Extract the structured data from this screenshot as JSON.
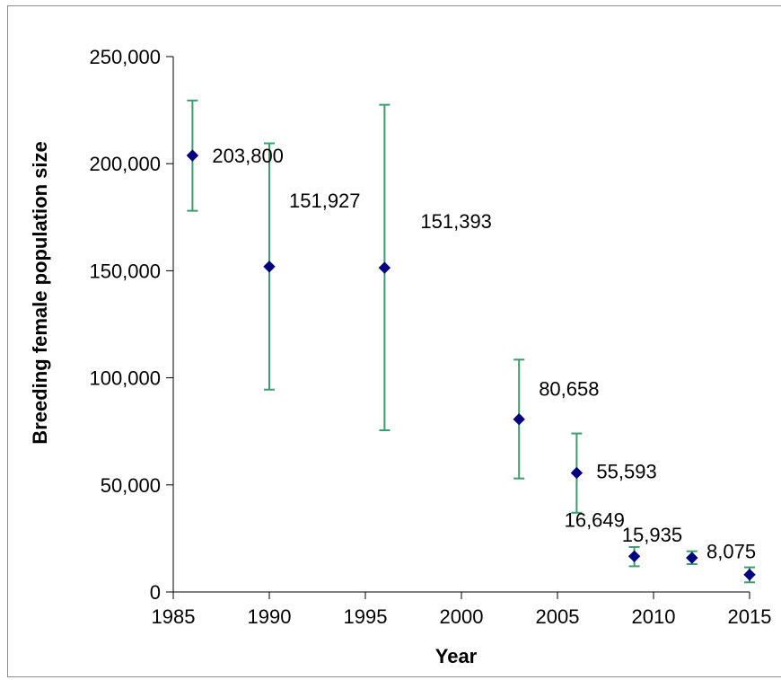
{
  "chart_data": {
    "type": "scatter",
    "title": "",
    "xlabel": "Year",
    "ylabel": "Breeding female population size",
    "xlim": [
      1985,
      2015
    ],
    "ylim": [
      0,
      250000
    ],
    "x_ticks": [
      1985,
      1990,
      1995,
      2000,
      2005,
      2010,
      2015
    ],
    "y_ticks": [
      0,
      50000,
      100000,
      150000,
      200000,
      250000
    ],
    "x_tick_labels": [
      "1985",
      "1990",
      "1995",
      "2000",
      "2005",
      "2010",
      "2015"
    ],
    "y_tick_labels": [
      "0",
      "50,000",
      "100,000",
      "150,000",
      "200,000",
      "250,000"
    ],
    "grid": false,
    "marker_color": "#000080",
    "error_bar_color": "#3a9e6e",
    "points": [
      {
        "x": 1986,
        "y": 203800,
        "low": 178000,
        "high": 229500,
        "label": "203,800"
      },
      {
        "x": 1990,
        "y": 151927,
        "low": 94500,
        "high": 209500,
        "label": "151,927"
      },
      {
        "x": 1996,
        "y": 151393,
        "low": 75500,
        "high": 227500,
        "label": "151,393"
      },
      {
        "x": 2003,
        "y": 80658,
        "low": 53000,
        "high": 108500,
        "label": "80,658"
      },
      {
        "x": 2006,
        "y": 55593,
        "low": 37000,
        "high": 74000,
        "label": "55,593"
      },
      {
        "x": 2009,
        "y": 16649,
        "low": 12000,
        "high": 21000,
        "label": "16,649"
      },
      {
        "x": 2012,
        "y": 15935,
        "low": 13000,
        "high": 19000,
        "label": "15,935"
      },
      {
        "x": 2015,
        "y": 8075,
        "low": 4500,
        "high": 11500,
        "label": "8,075"
      }
    ]
  }
}
